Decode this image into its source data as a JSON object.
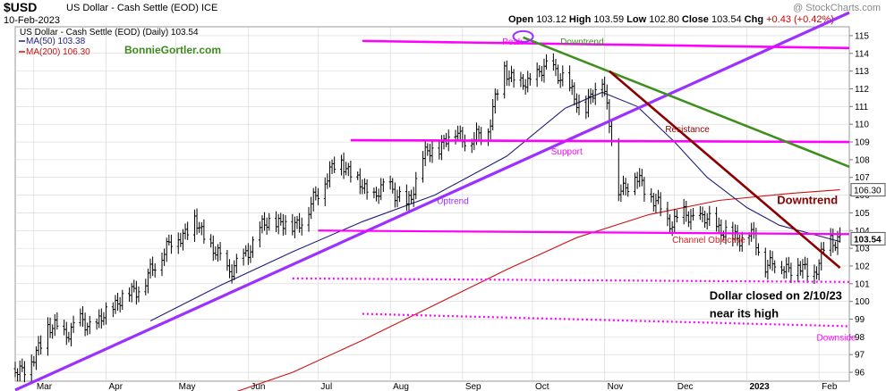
{
  "header": {
    "symbol": "$USD",
    "description": "US Dollar - Cash Settle (EOD) ICE",
    "date": "10-Feb-2023",
    "watermark": "@ StockCharts.com",
    "open_label": "Open",
    "open": "103.12",
    "high_label": "High",
    "high": "103.59",
    "low_label": "Low",
    "low": "102.80",
    "close_label": "Close",
    "close": "103.54",
    "chg_label": "Chg",
    "chg": "+0.43 (+0.42%)"
  },
  "legend": {
    "price_line": "US Dollar - Cash Settle (EOD) (Daily) 103.54",
    "ma50": "MA(50) 103.38",
    "ma200": "MA(200) 106.30",
    "site": "BonnieGortler.com"
  },
  "colors": {
    "magenta": "#ff00ff",
    "purple": "#9b30ff",
    "green": "#3f8f1f",
    "darkred": "#8b0000",
    "ma50": "#1f1f7a",
    "ma200": "#cc1111",
    "bars": "#000000",
    "grid": "#d6d6d6",
    "site_text": "#3d8b1c"
  },
  "chart_data": {
    "type": "ohlc",
    "title": "US Dollar - Cash Settle (EOD) (Daily)",
    "ylim": [
      95.5,
      115.5
    ],
    "y_ticks": [
      96,
      97,
      98,
      99,
      100,
      101,
      102,
      103,
      104,
      105,
      106,
      107,
      108,
      109,
      110,
      111,
      112,
      113,
      114,
      115
    ],
    "x_start": "2022-02-21",
    "x_end": "2023-02-14",
    "x_ticks": [
      {
        "label": "Mar",
        "date": "2022-03-01"
      },
      {
        "label": "Apr",
        "date": "2022-04-01"
      },
      {
        "label": "May",
        "date": "2022-05-01"
      },
      {
        "label": "Jun",
        "date": "2022-06-01"
      },
      {
        "label": "Jul",
        "date": "2022-07-01"
      },
      {
        "label": "Aug",
        "date": "2022-08-01"
      },
      {
        "label": "Sep",
        "date": "2022-09-01"
      },
      {
        "label": "Oct",
        "date": "2022-10-01"
      },
      {
        "label": "Nov",
        "date": "2022-11-01"
      },
      {
        "label": "Dec",
        "date": "2022-12-01"
      },
      {
        "label": "2023",
        "date": "2023-01-01",
        "bold": true
      },
      {
        "label": "Feb",
        "date": "2023-02-01"
      }
    ],
    "close_series": [
      [
        "2022-02-21",
        96.2
      ],
      [
        "2022-02-28",
        96.4
      ],
      [
        "2022-03-07",
        98.6
      ],
      [
        "2022-03-14",
        98.2
      ],
      [
        "2022-03-21",
        98.8
      ],
      [
        "2022-03-28",
        98.6
      ],
      [
        "2022-04-04",
        99.8
      ],
      [
        "2022-04-11",
        100.5
      ],
      [
        "2022-04-18",
        101.1
      ],
      [
        "2022-04-25",
        102.8
      ],
      [
        "2022-05-02",
        103.6
      ],
      [
        "2022-05-09",
        104.5
      ],
      [
        "2022-05-16",
        103.1
      ],
      [
        "2022-05-23",
        101.8
      ],
      [
        "2022-05-30",
        102.3
      ],
      [
        "2022-06-06",
        104.1
      ],
      [
        "2022-06-13",
        104.6
      ],
      [
        "2022-06-20",
        104.2
      ],
      [
        "2022-06-27",
        105.1
      ],
      [
        "2022-07-04",
        107.0
      ],
      [
        "2022-07-11",
        108.0
      ],
      [
        "2022-07-18",
        106.7
      ],
      [
        "2022-07-25",
        105.9
      ],
      [
        "2022-08-01",
        106.6
      ],
      [
        "2022-08-08",
        105.2
      ],
      [
        "2022-08-15",
        108.1
      ],
      [
        "2022-08-22",
        108.8
      ],
      [
        "2022-08-29",
        109.6
      ],
      [
        "2022-09-05",
        109.0
      ],
      [
        "2022-09-12",
        109.8
      ],
      [
        "2022-09-19",
        113.2
      ],
      [
        "2022-09-26",
        112.1
      ],
      [
        "2022-10-03",
        112.8
      ],
      [
        "2022-10-10",
        113.3
      ],
      [
        "2022-10-17",
        111.9
      ],
      [
        "2022-10-24",
        110.8
      ],
      [
        "2022-10-31",
        112.8
      ],
      [
        "2022-11-07",
        106.3
      ],
      [
        "2022-11-14",
        107.0
      ],
      [
        "2022-11-21",
        106.0
      ],
      [
        "2022-11-28",
        104.5
      ],
      [
        "2022-12-05",
        104.8
      ],
      [
        "2022-12-12",
        104.7
      ],
      [
        "2022-12-19",
        104.3
      ],
      [
        "2022-12-26",
        103.5
      ],
      [
        "2023-01-02",
        103.9
      ],
      [
        "2023-01-09",
        102.2
      ],
      [
        "2023-01-16",
        102.0
      ],
      [
        "2023-01-23",
        101.9
      ],
      [
        "2023-01-30",
        101.6
      ],
      [
        "2023-02-06",
        103.5
      ],
      [
        "2023-02-10",
        103.54
      ]
    ],
    "last_close": 103.54,
    "series": [
      {
        "name": "MA(50) 103.38",
        "values": [
          [
            "2022-04-20",
            98.9
          ],
          [
            "2022-05-20",
            100.9
          ],
          [
            "2022-06-20",
            102.8
          ],
          [
            "2022-07-20",
            104.5
          ],
          [
            "2022-08-20",
            106.0
          ],
          [
            "2022-09-20",
            108.2
          ],
          [
            "2022-10-15",
            110.9
          ],
          [
            "2022-10-31",
            111.8
          ],
          [
            "2022-11-15",
            111.0
          ],
          [
            "2022-12-01",
            109.0
          ],
          [
            "2022-12-15",
            107.0
          ],
          [
            "2023-01-01",
            105.3
          ],
          [
            "2023-01-15",
            104.3
          ],
          [
            "2023-02-10",
            103.38
          ]
        ]
      },
      {
        "name": "MA(200) 106.30",
        "values": [
          [
            "2022-05-20",
            94.6
          ],
          [
            "2022-06-20",
            96.0
          ],
          [
            "2022-07-20",
            97.8
          ],
          [
            "2022-08-20",
            99.8
          ],
          [
            "2022-09-20",
            101.8
          ],
          [
            "2022-10-20",
            103.6
          ],
          [
            "2022-11-20",
            104.9
          ],
          [
            "2022-12-20",
            105.7
          ],
          [
            "2023-01-20",
            106.1
          ],
          [
            "2023-02-10",
            106.3
          ]
        ]
      }
    ],
    "price_tags": [
      {
        "label": "106.30",
        "value": 106.3
      },
      {
        "label": "103.54",
        "value": 103.54,
        "bold": true
      }
    ],
    "lines": [
      {
        "kind": "uptrend",
        "from": [
          "2022-02-21",
          95.0
        ],
        "to": [
          "2023-02-14",
          116.3
        ]
      },
      {
        "kind": "peak-horizontal",
        "from": [
          "2022-07-20",
          114.7
        ],
        "to": [
          "2023-02-14",
          114.3
        ]
      },
      {
        "kind": "resistance",
        "from": [
          "2022-07-15",
          109.1
        ],
        "to": [
          "2023-02-14",
          109.0
        ]
      },
      {
        "kind": "channel",
        "from": [
          "2022-07-01",
          104.0
        ],
        "to": [
          "2023-02-14",
          103.8
        ]
      },
      {
        "kind": "green-downtrend",
        "from": [
          "2022-09-27",
          114.9
        ],
        "to": [
          "2023-02-14",
          107.6
        ]
      },
      {
        "kind": "red-downtrend",
        "from": [
          "2022-11-03",
          113.0
        ],
        "to": [
          "2023-02-10",
          101.9
        ]
      },
      {
        "kind": "dotted-upper",
        "from": [
          "2022-06-20",
          101.3
        ],
        "to": [
          "2023-02-14",
          101.1
        ]
      },
      {
        "kind": "dotted-lower",
        "from": [
          "2022-07-20",
          99.3
        ],
        "to": [
          "2023-02-14",
          98.6
        ]
      }
    ],
    "annotations": [
      {
        "text": "Peak",
        "x": "2022-09-18",
        "y": 114.5,
        "color": "magenta"
      },
      {
        "text": "Downtrend",
        "x": "2022-10-13",
        "y": 114.5,
        "color": "green"
      },
      {
        "text": "Resistance",
        "x": "2022-11-27",
        "y": 109.55,
        "color": "darkred"
      },
      {
        "text": "Support",
        "x": "2022-10-09",
        "y": 108.3,
        "color": "magenta"
      },
      {
        "text": "Uptrend",
        "x": "2022-08-21",
        "y": 105.5,
        "color": "purple"
      },
      {
        "text": "Channel Objective",
        "x": "2022-11-30",
        "y": 103.3,
        "color": "red"
      },
      {
        "text": "Downside",
        "x": "2023-01-31",
        "y": 97.8,
        "color": "magenta"
      },
      {
        "text": "Downtrend",
        "x": "2023-01-14",
        "y": 105.5,
        "color": "darkred",
        "bold": true
      },
      {
        "text": "Dollar closed on 2/10/23",
        "x": "2022-12-16",
        "y": 100.1,
        "color": "black",
        "bold": true
      },
      {
        "text": "near its high",
        "x": "2022-12-16",
        "y": 99.1,
        "color": "black",
        "bold": true
      }
    ]
  }
}
